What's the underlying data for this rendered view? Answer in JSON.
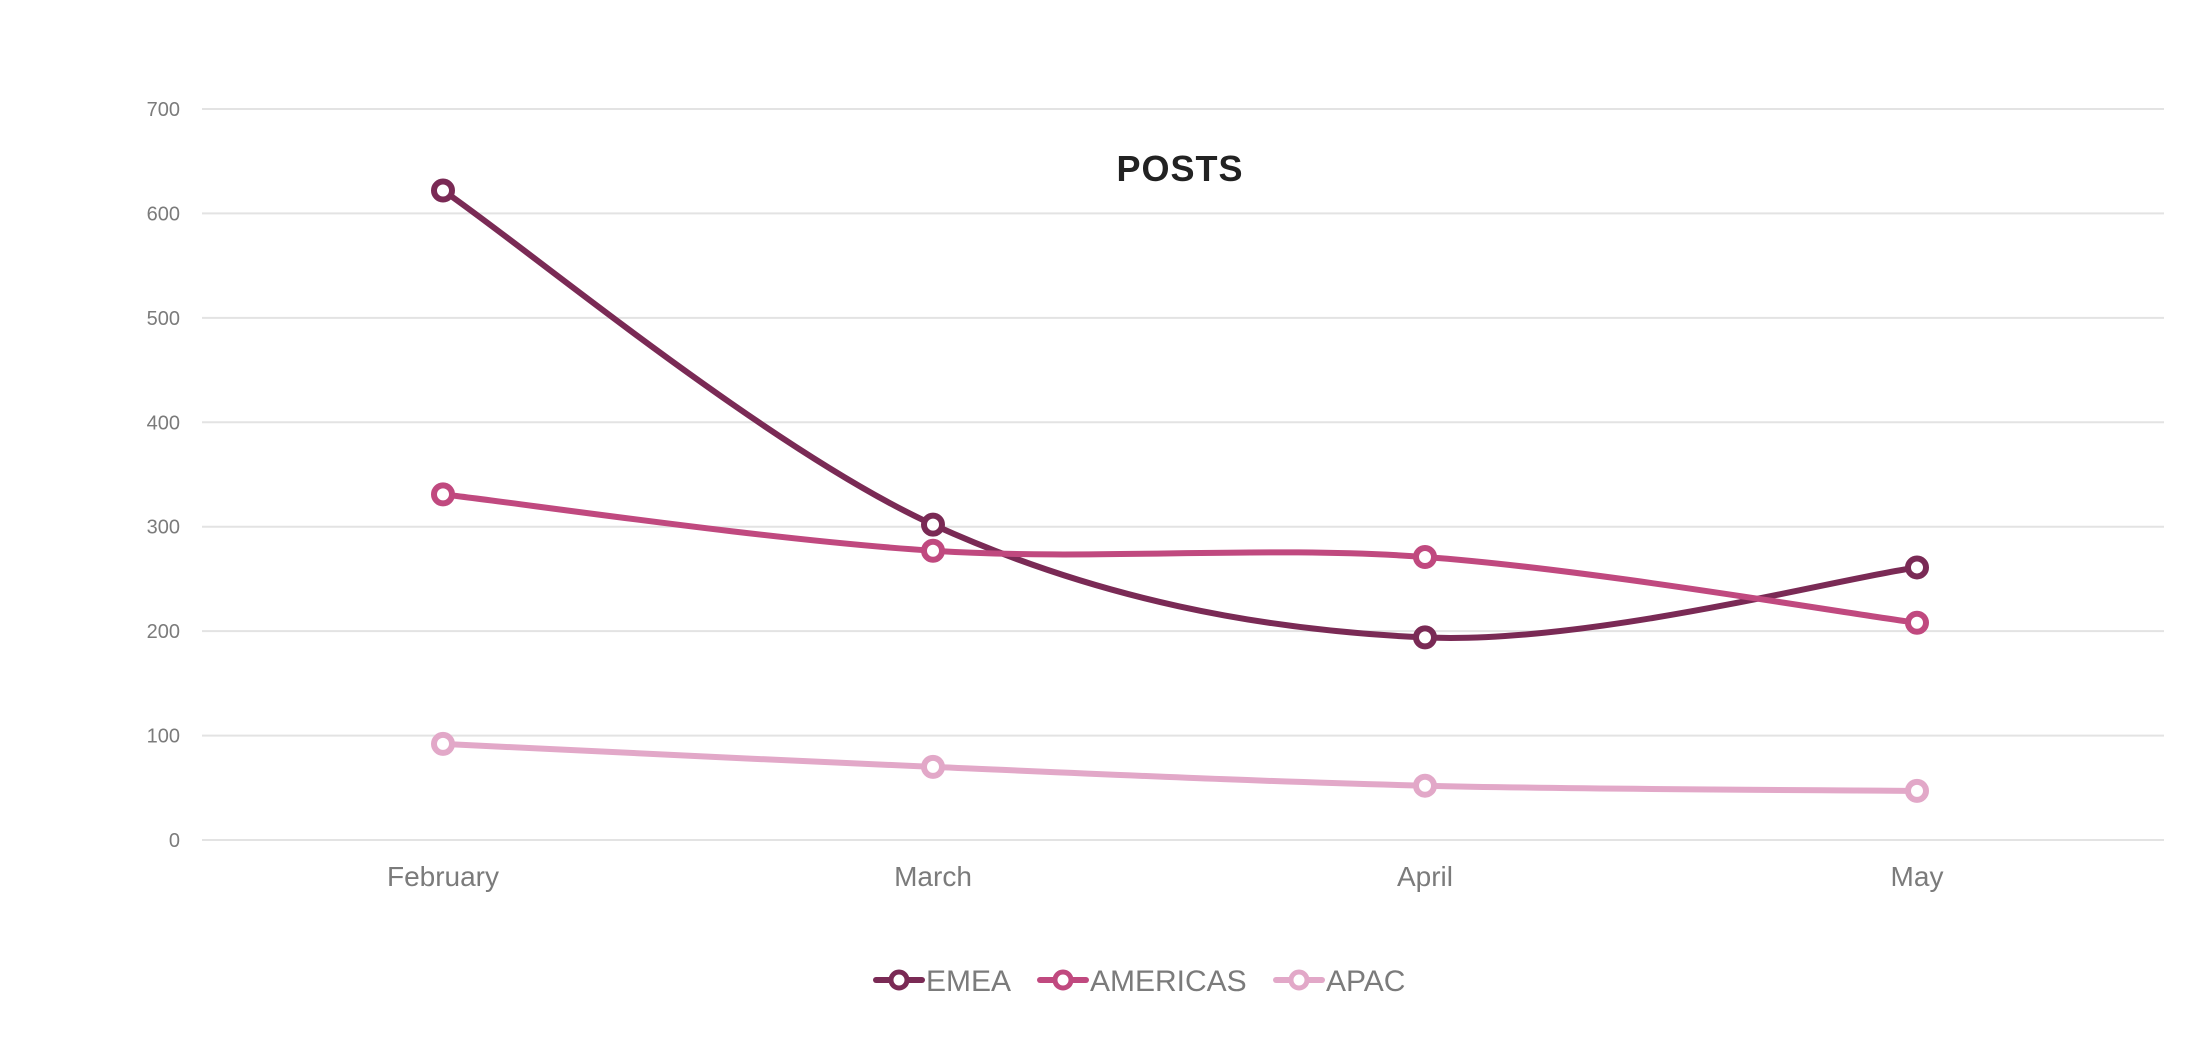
{
  "chart_data": {
    "type": "line",
    "title": "POSTS",
    "xlabel": "",
    "ylabel": "",
    "categories": [
      "February",
      "March",
      "April",
      "May"
    ],
    "ylim": [
      0,
      700
    ],
    "yticks": [
      0,
      100,
      200,
      300,
      400,
      500,
      600,
      700
    ],
    "grid": true,
    "smooth": true,
    "legend_position": "bottom",
    "series": [
      {
        "name": "EMEA",
        "color": "#7a2a55",
        "values": [
          622,
          302,
          194,
          261
        ]
      },
      {
        "name": "AMERICAS",
        "color": "#c0497f",
        "values": [
          331,
          277,
          271,
          208
        ]
      },
      {
        "name": "APAC",
        "color": "#e2a8c8",
        "values": [
          92,
          70,
          52,
          47
        ]
      }
    ]
  }
}
